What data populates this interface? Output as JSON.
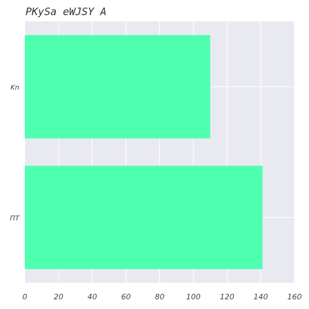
{
  "chart_data": {
    "type": "bar",
    "orientation": "horizontal",
    "title": "PKySa eWJSY A",
    "xlabel": "",
    "ylabel": "",
    "categories": [
      "Kn",
      "ΠΤ"
    ],
    "values": [
      110,
      141
    ],
    "xlim": [
      0,
      160
    ],
    "xticks": [
      "0",
      "20",
      "40",
      "60",
      "80",
      "100",
      "120",
      "140",
      "160"
    ],
    "grid": true,
    "legend": false
  },
  "colors": {
    "background": "#e9e9f1",
    "bar": "#4dffae",
    "grid": "#ffffff"
  }
}
